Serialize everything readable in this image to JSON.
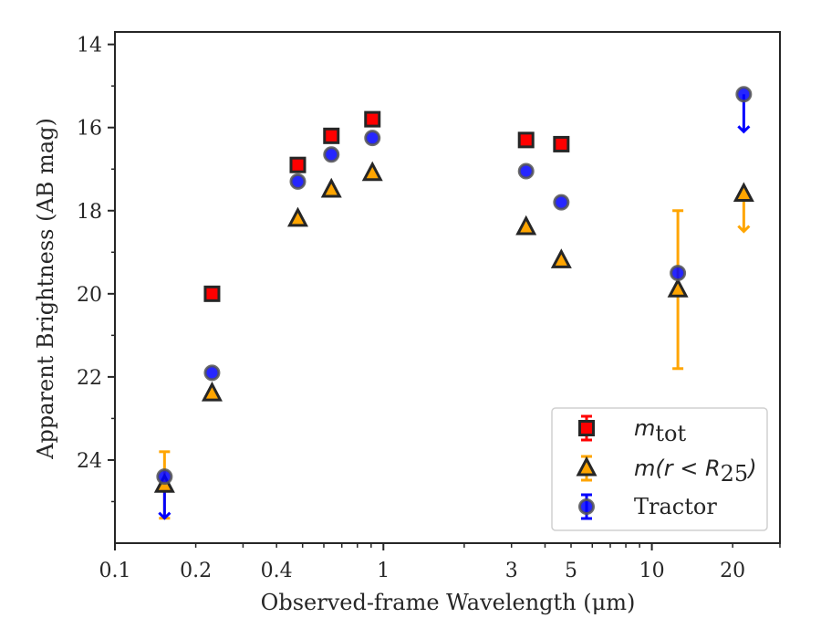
{
  "chart_data": {
    "type": "scatter",
    "title": "",
    "xlabel": "Observed-frame Wavelength (μm)",
    "ylabel": "Apparent Brightness (AB mag)",
    "xscale": "log",
    "xlim": [
      0.1,
      30
    ],
    "ylim": [
      26.0,
      13.7
    ],
    "y_inverted": true,
    "grid": false,
    "legend_position": "lower-right",
    "x_ticks": [
      0.1,
      0.2,
      0.4,
      1,
      3,
      5,
      10,
      20
    ],
    "x_tick_labels": [
      "0.1",
      "0.2",
      "0.4",
      "1",
      "3",
      "5",
      "10",
      "20"
    ],
    "y_ticks": [
      14,
      16,
      18,
      20,
      22,
      24
    ],
    "y_tick_labels": [
      "14",
      "16",
      "18",
      "20",
      "22",
      "24"
    ],
    "series": [
      {
        "name": "m_tot",
        "legend_label": {
          "main": "m",
          "sub": "tot"
        },
        "marker": "square",
        "color": "#ff0000",
        "edge_color": "#262626",
        "points": [
          {
            "x": 0.23,
            "y": 20.0
          },
          {
            "x": 0.48,
            "y": 16.9
          },
          {
            "x": 0.64,
            "y": 16.2
          },
          {
            "x": 0.91,
            "y": 15.8
          },
          {
            "x": 3.4,
            "y": 16.3
          },
          {
            "x": 4.6,
            "y": 16.4
          }
        ]
      },
      {
        "name": "m(r<R25)",
        "legend_label": {
          "main": "m(r < R",
          "sub": "25",
          "tail": ")"
        },
        "marker": "triangle",
        "color": "#ffa500",
        "edge_color": "#262626",
        "points": [
          {
            "x": 0.153,
            "y": 24.6,
            "yerr_low": 23.8,
            "yerr_high": 25.4
          },
          {
            "x": 0.23,
            "y": 22.4
          },
          {
            "x": 0.48,
            "y": 18.2
          },
          {
            "x": 0.64,
            "y": 17.5
          },
          {
            "x": 0.91,
            "y": 17.1
          },
          {
            "x": 3.4,
            "y": 18.4
          },
          {
            "x": 4.6,
            "y": 19.2
          },
          {
            "x": 12.5,
            "y": 19.9,
            "yerr_low": 18.0,
            "yerr_high": 21.8
          },
          {
            "x": 22.0,
            "y": 17.6,
            "upper_limit_to": 18.5
          }
        ]
      },
      {
        "name": "Tractor",
        "legend_label": {
          "main": "Tractor"
        },
        "marker": "circle",
        "color": "#0000ff",
        "edge_color": "#555555",
        "points": [
          {
            "x": 0.153,
            "y": 24.4,
            "upper_limit_to": 25.4
          },
          {
            "x": 0.23,
            "y": 21.9
          },
          {
            "x": 0.48,
            "y": 17.3
          },
          {
            "x": 0.64,
            "y": 16.65
          },
          {
            "x": 0.91,
            "y": 16.25
          },
          {
            "x": 3.4,
            "y": 17.05
          },
          {
            "x": 4.6,
            "y": 17.8
          },
          {
            "x": 12.5,
            "y": 19.5
          },
          {
            "x": 22.0,
            "y": 15.2,
            "upper_limit_to": 16.1
          }
        ]
      }
    ]
  }
}
